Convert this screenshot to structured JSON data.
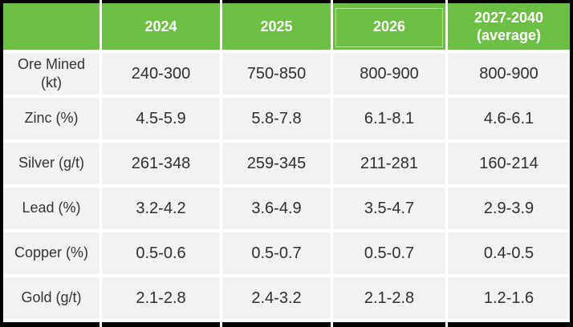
{
  "chart_data": {
    "type": "table",
    "columns": [
      "",
      "2024",
      "2025",
      "2026",
      "2027-2040 (average)"
    ],
    "highlighted_column_index": 3,
    "rows": [
      {
        "label": "Ore Mined (kt)",
        "values": [
          "240-300",
          "750-850",
          "800-900",
          "800-900"
        ]
      },
      {
        "label": "Zinc (%)",
        "values": [
          "4.5-5.9",
          "5.8-7.8",
          "6.1-8.1",
          "4.6-6.1"
        ]
      },
      {
        "label": "Silver (g/t)",
        "values": [
          "261-348",
          "259-345",
          "211-281",
          "160-214"
        ]
      },
      {
        "label": "Lead (%)",
        "values": [
          "3.2-4.2",
          "3.6-4.9",
          "3.5-4.7",
          "2.9-3.9"
        ]
      },
      {
        "label": "Copper (%)",
        "values": [
          "0.5-0.6",
          "0.5-0.7",
          "0.5-0.7",
          "0.4-0.5"
        ]
      },
      {
        "label": "Gold (g/t)",
        "values": [
          "2.1-2.8",
          "2.4-3.2",
          "2.1-2.8",
          "1.2-1.6"
        ]
      }
    ]
  },
  "colors": {
    "header_green": "#6cbe45",
    "cell_background": "#f2f2f2",
    "outer_border": "#000000",
    "header_text": "#ffffff",
    "body_text": "#2f2f2f",
    "gridline_white": "#ffffff"
  }
}
